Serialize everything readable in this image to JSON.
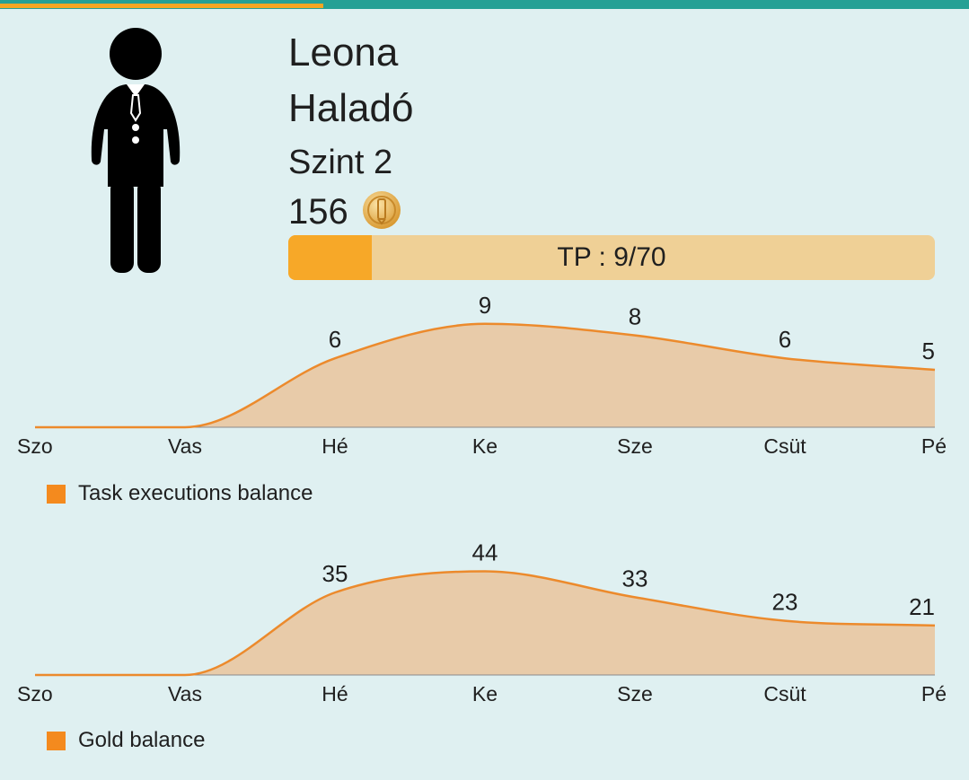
{
  "profile": {
    "name": "Leona",
    "rank": "Haladó",
    "level": "Szint 2",
    "gold": "156",
    "avatar_icon": "person-in-suit-icon",
    "coin_icon": "gold-coin-icon"
  },
  "tp": {
    "label": "TP : 9/70",
    "current": 9,
    "max": 70,
    "fill_fraction": 0.129
  },
  "colors": {
    "topbar": "#25a095",
    "topbar_accent": "#f5a623",
    "background": "#dff0f1",
    "tp_track": "#efd096",
    "tp_fill": "#f7a828",
    "series_line": "#ec8a2c",
    "series_fill": "#e8cba9",
    "legend_swatch": "#f48a1e"
  },
  "chart_data": [
    {
      "type": "area",
      "categories": [
        "Szo",
        "Vas",
        "Hé",
        "Ke",
        "Sze",
        "Csüt",
        "Pé"
      ],
      "series": [
        {
          "name": "Task executions balance",
          "values": [
            0,
            0,
            6,
            9,
            8,
            6,
            5
          ]
        }
      ],
      "data_labels": [
        "",
        "",
        "6",
        "9",
        "8",
        "6",
        "5"
      ],
      "ylim": [
        0,
        10
      ],
      "grid": false,
      "legend": "bottom-left"
    },
    {
      "type": "area",
      "categories": [
        "Szo",
        "Vas",
        "Hé",
        "Ke",
        "Sze",
        "Csüt",
        "Pé"
      ],
      "series": [
        {
          "name": "Gold balance",
          "values": [
            0,
            0,
            35,
            44,
            33,
            23,
            21
          ]
        }
      ],
      "data_labels": [
        "",
        "",
        "35",
        "44",
        "33",
        "23",
        "21"
      ],
      "ylim": [
        0,
        48
      ],
      "grid": false,
      "legend": "bottom-left"
    }
  ]
}
